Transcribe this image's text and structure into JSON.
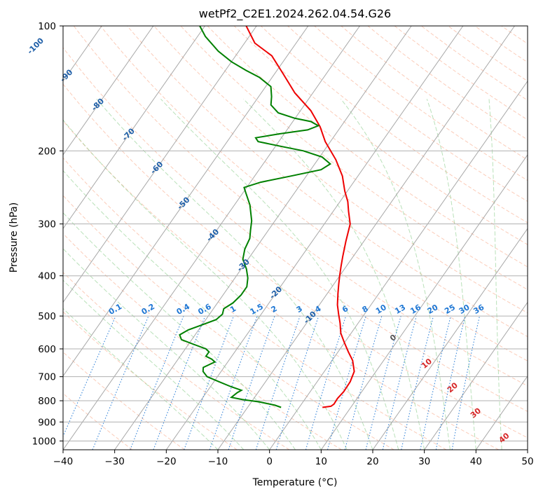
{
  "chart_data": {
    "type": "line",
    "subtype": "skew-t log-p diagram",
    "title": "wetPf2_C2E1.2024.262.04.54.G26",
    "xlabel": "Temperature (°C)",
    "ylabel": "Pressure (hPa)",
    "xlim": [
      -40,
      50
    ],
    "ylim": [
      1050,
      100
    ],
    "y_scale": "log",
    "x_ticks": [
      "−40",
      "−30",
      "−20",
      "−10",
      "0",
      "10",
      "20",
      "30",
      "40",
      "50"
    ],
    "y_ticks": [
      "100",
      "200",
      "300",
      "400",
      "500",
      "600",
      "700",
      "800",
      "900",
      "1000"
    ],
    "grid": true,
    "colors": {
      "temperature": "#ee0000",
      "dewpoint": "#008000",
      "isotherm": "#a8a8a8",
      "dry_adiabat": "#f7a27f",
      "moist_adiabat": "#7fc97f",
      "mixing_ratio": "#1f77d4",
      "isotherm_label": "#1f5fa8",
      "moist_label": "#d62728"
    },
    "series": [
      {
        "key": "temperature",
        "points": [
          [
            4.5,
            830
          ],
          [
            6.0,
            825
          ],
          [
            6.3,
            815
          ],
          [
            6.2,
            790
          ],
          [
            6.5,
            760
          ],
          [
            6.4,
            720
          ],
          [
            5.8,
            680
          ],
          [
            4.0,
            640
          ],
          [
            2.0,
            610
          ],
          [
            0.0,
            580
          ],
          [
            -2.0,
            550
          ],
          [
            -3.5,
            520
          ],
          [
            -5.0,
            495
          ],
          [
            -6.5,
            470
          ],
          [
            -8.0,
            440
          ],
          [
            -9.0,
            420
          ],
          [
            -10.0,
            400
          ],
          [
            -11.0,
            380
          ],
          [
            -12.0,
            360
          ],
          [
            -13.5,
            330
          ],
          [
            -15.0,
            300
          ],
          [
            -17.0,
            280
          ],
          [
            -18.5,
            265
          ],
          [
            -20.5,
            250
          ],
          [
            -23.0,
            230
          ],
          [
            -26.5,
            210
          ],
          [
            -31.0,
            190
          ],
          [
            -34.0,
            175
          ],
          [
            -38.0,
            160
          ],
          [
            -43.5,
            145
          ],
          [
            -48.5,
            130
          ],
          [
            -53.0,
            118
          ],
          [
            -58.0,
            110
          ],
          [
            -62.0,
            100
          ]
        ]
      },
      {
        "key": "dewpoint",
        "points": [
          [
            -3.5,
            830
          ],
          [
            -5.0,
            820
          ],
          [
            -8.5,
            805
          ],
          [
            -12.0,
            795
          ],
          [
            -14.5,
            785
          ],
          [
            -14.0,
            765
          ],
          [
            -13.5,
            755
          ],
          [
            -16.0,
            740
          ],
          [
            -19.0,
            720
          ],
          [
            -22.0,
            700
          ],
          [
            -23.5,
            680
          ],
          [
            -24.0,
            665
          ],
          [
            -22.5,
            645
          ],
          [
            -23.5,
            635
          ],
          [
            -25.0,
            625
          ],
          [
            -25.0,
            610
          ],
          [
            -26.0,
            600
          ],
          [
            -29.0,
            585
          ],
          [
            -32.0,
            570
          ],
          [
            -33.0,
            555
          ],
          [
            -32.0,
            540
          ],
          [
            -30.0,
            525
          ],
          [
            -28.0,
            510
          ],
          [
            -27.5,
            495
          ],
          [
            -28.0,
            480
          ],
          [
            -27.0,
            465
          ],
          [
            -26.5,
            445
          ],
          [
            -26.5,
            425
          ],
          [
            -27.5,
            405
          ],
          [
            -29.0,
            385
          ],
          [
            -31.0,
            365
          ],
          [
            -32.0,
            345
          ],
          [
            -32.5,
            325
          ],
          [
            -33.5,
            310
          ],
          [
            -34.5,
            295
          ],
          [
            -37.0,
            270
          ],
          [
            -39.5,
            252
          ],
          [
            -40.5,
            245
          ],
          [
            -38.0,
            238
          ],
          [
            -33.0,
            230
          ],
          [
            -28.0,
            222
          ],
          [
            -27.0,
            215
          ],
          [
            -29.5,
            207
          ],
          [
            -34.0,
            200
          ],
          [
            -39.0,
            195
          ],
          [
            -44.0,
            190
          ],
          [
            -45.0,
            186
          ],
          [
            -41.0,
            182
          ],
          [
            -36.0,
            178
          ],
          [
            -34.5,
            174
          ],
          [
            -36.5,
            170
          ],
          [
            -40.0,
            167
          ],
          [
            -44.0,
            162
          ],
          [
            -46.5,
            155
          ],
          [
            -47.5,
            148
          ],
          [
            -49.0,
            140
          ],
          [
            -52.5,
            133
          ],
          [
            -56.0,
            128
          ],
          [
            -60.0,
            122
          ],
          [
            -64.0,
            115
          ],
          [
            -68.5,
            106
          ],
          [
            -71.0,
            100
          ]
        ]
      }
    ],
    "isotherm_labels": [
      "-100",
      "-90",
      "-80",
      "-70",
      "-60",
      "-50",
      "-40",
      "-30",
      "-20",
      "-10"
    ],
    "mixing_ratio_labels": [
      "0.1",
      "0.2",
      "0.4",
      "0.6",
      "1",
      "1.5",
      "2",
      "3",
      "4",
      "6",
      "8",
      "10",
      "13",
      "16",
      "20",
      "25",
      "30",
      "36"
    ],
    "mixing_ratio_values": [
      0.1,
      0.2,
      0.4,
      0.6,
      1,
      1.5,
      2,
      3,
      4,
      6,
      8,
      10,
      13,
      16,
      20,
      25,
      30,
      36
    ],
    "moist_adiabat_labels": [
      "0",
      "10",
      "20",
      "30",
      "40"
    ]
  }
}
